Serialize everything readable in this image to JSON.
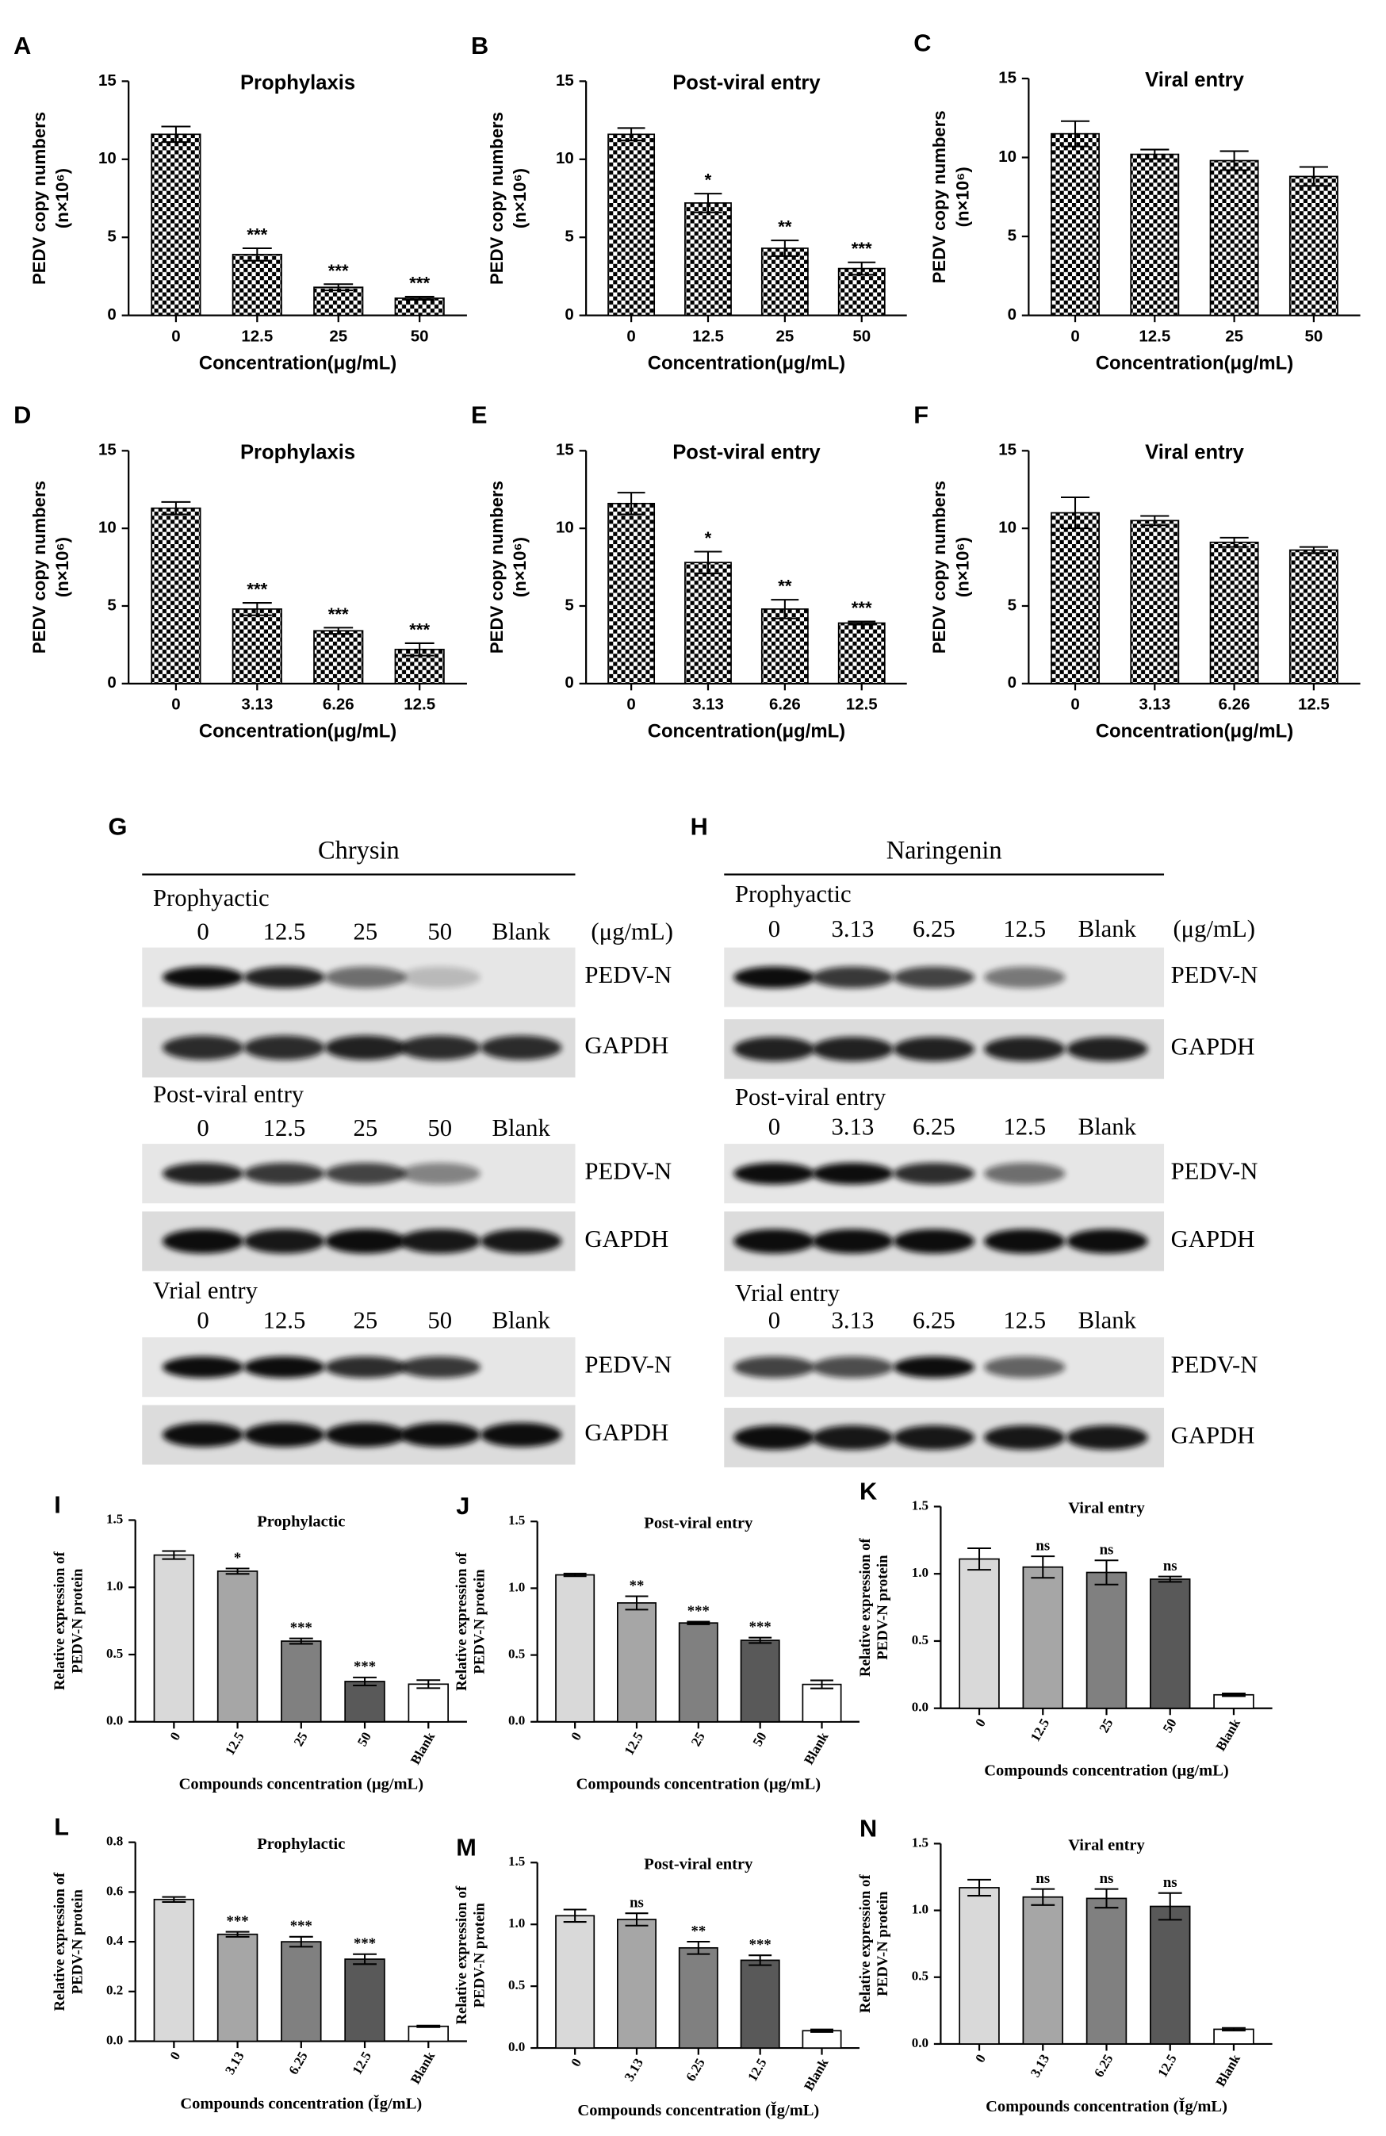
{
  "chart_data": [
    {
      "type": "bar",
      "panel": "A",
      "title": "Prophylaxis",
      "ylabel": [
        "PEDV copy numbers",
        "(n×10⁶)"
      ],
      "xlabel": "Concentration(μg/mL)",
      "categories": [
        "0",
        "12.5",
        "25",
        "50"
      ],
      "values": [
        11.6,
        3.9,
        1.8,
        1.1
      ],
      "errors": [
        0.5,
        0.4,
        0.2,
        0.1
      ],
      "annotations": [
        null,
        "***",
        "***",
        "***"
      ],
      "ylim": [
        0,
        15
      ],
      "yticks": [
        0,
        5,
        10,
        15
      ],
      "pattern": "checker",
      "color": "#000000"
    },
    {
      "type": "bar",
      "panel": "B",
      "title": "Post-viral entry",
      "ylabel": [
        "PEDV copy numbers",
        "(n×10⁶)"
      ],
      "xlabel": "Concentration(μg/mL)",
      "categories": [
        "0",
        "12.5",
        "25",
        "50"
      ],
      "values": [
        11.6,
        7.2,
        4.3,
        3.0
      ],
      "errors": [
        0.4,
        0.6,
        0.5,
        0.4
      ],
      "annotations": [
        null,
        "*",
        "**",
        "***"
      ],
      "ylim": [
        0,
        15
      ],
      "yticks": [
        0,
        5,
        10,
        15
      ],
      "pattern": "checker",
      "color": "#000000"
    },
    {
      "type": "bar",
      "panel": "C",
      "title": "Viral entry",
      "ylabel": [
        "PEDV copy numbers",
        "(n×10⁶)"
      ],
      "xlabel": "Concentration(μg/mL)",
      "categories": [
        "0",
        "12.5",
        "25",
        "50"
      ],
      "values": [
        11.5,
        10.2,
        9.8,
        8.8
      ],
      "errors": [
        0.8,
        0.3,
        0.6,
        0.6
      ],
      "annotations": [
        null,
        null,
        null,
        null
      ],
      "ylim": [
        0,
        15
      ],
      "yticks": [
        0,
        5,
        10,
        15
      ],
      "pattern": "checker",
      "color": "#000000"
    },
    {
      "type": "bar",
      "panel": "D",
      "title": "Prophylaxis",
      "ylabel": [
        "PEDV copy numbers",
        "(n×10⁶)"
      ],
      "xlabel": "Concentration(μg/mL)",
      "categories": [
        "0",
        "3.13",
        "6.26",
        "12.5"
      ],
      "values": [
        11.3,
        4.8,
        3.4,
        2.2
      ],
      "errors": [
        0.4,
        0.4,
        0.2,
        0.4
      ],
      "annotations": [
        null,
        "***",
        "***",
        "***"
      ],
      "ylim": [
        0,
        15
      ],
      "yticks": [
        0,
        5,
        10,
        15
      ],
      "pattern": "checker",
      "color": "#000000"
    },
    {
      "type": "bar",
      "panel": "E",
      "title": "Post-viral entry",
      "ylabel": [
        "PEDV copy numbers",
        "(n×10⁶)"
      ],
      "xlabel": "Concentration(μg/mL)",
      "categories": [
        "0",
        "3.13",
        "6.26",
        "12.5"
      ],
      "values": [
        11.6,
        7.8,
        4.8,
        3.9
      ],
      "errors": [
        0.7,
        0.7,
        0.6,
        0.1
      ],
      "annotations": [
        null,
        "*",
        "**",
        "***"
      ],
      "ylim": [
        0,
        15
      ],
      "yticks": [
        0,
        5,
        10,
        15
      ],
      "pattern": "checker",
      "color": "#000000"
    },
    {
      "type": "bar",
      "panel": "F",
      "title": "Viral entry",
      "ylabel": [
        "PEDV copy numbers",
        "(n×10⁶)"
      ],
      "xlabel": "Concentration(μg/mL)",
      "categories": [
        "0",
        "3.13",
        "6.26",
        "12.5"
      ],
      "values": [
        11.0,
        10.5,
        9.1,
        8.6
      ],
      "errors": [
        1.0,
        0.3,
        0.3,
        0.2
      ],
      "annotations": [
        null,
        null,
        null,
        null
      ],
      "ylim": [
        0,
        15
      ],
      "yticks": [
        0,
        5,
        10,
        15
      ],
      "pattern": "checker",
      "color": "#000000"
    },
    {
      "type": "bar",
      "panel": "I",
      "title": "Prophylactic",
      "ylabel": [
        "Relative expression of",
        "PEDV-N protein"
      ],
      "xlabel": "Compounds concentration (μg/mL)",
      "categories": [
        "0",
        "12.5",
        "25",
        "50",
        "Blank"
      ],
      "values": [
        1.24,
        1.12,
        0.6,
        0.3,
        0.28
      ],
      "errors": [
        0.03,
        0.02,
        0.02,
        0.03,
        0.03
      ],
      "annotations": [
        null,
        "*",
        "***",
        "***",
        null
      ],
      "ylim": [
        0,
        1.5
      ],
      "yticks": [
        {
          "value": 0,
          "label": "0.0"
        },
        0.5,
        {
          "value": 1,
          "label": "1.0"
        },
        1.5
      ],
      "colors": [
        "#d9d9d9",
        "#a6a6a6",
        "#808080",
        "#595959",
        "#ffffff"
      ]
    },
    {
      "type": "bar",
      "panel": "J",
      "title": "Post-viral entry",
      "ylabel": [
        "Relative expression of",
        "PEDV-N protein"
      ],
      "xlabel": "Compounds concentration (μg/mL)",
      "categories": [
        "0",
        "12.5",
        "25",
        "50",
        "Blank"
      ],
      "values": [
        1.1,
        0.89,
        0.74,
        0.61,
        0.28
      ],
      "errors": [
        0.01,
        0.05,
        0.01,
        0.02,
        0.03
      ],
      "annotations": [
        null,
        "**",
        "***",
        "***",
        null
      ],
      "ylim": [
        0,
        1.5
      ],
      "yticks": [
        {
          "value": 0,
          "label": "0.0"
        },
        0.5,
        {
          "value": 1,
          "label": "1.0"
        },
        1.5
      ],
      "colors": [
        "#d9d9d9",
        "#a6a6a6",
        "#808080",
        "#595959",
        "#ffffff"
      ]
    },
    {
      "type": "bar",
      "panel": "K",
      "title": "Viral entry",
      "ylabel": [
        "Relative expression of",
        "PEDV-N protein"
      ],
      "xlabel": "Compounds concentration (μg/mL)",
      "categories": [
        "0",
        "12.5",
        "25",
        "50",
        "Blank"
      ],
      "values": [
        1.11,
        1.05,
        1.01,
        0.96,
        0.1
      ],
      "errors": [
        0.08,
        0.08,
        0.09,
        0.02,
        0.01
      ],
      "annotations": [
        null,
        "ns",
        "ns",
        "ns",
        null
      ],
      "ylim": [
        0,
        1.5
      ],
      "yticks": [
        {
          "value": 0,
          "label": "0.0"
        },
        0.5,
        {
          "value": 1,
          "label": "1.0"
        },
        1.5
      ],
      "colors": [
        "#d9d9d9",
        "#a6a6a6",
        "#808080",
        "#595959",
        "#ffffff"
      ]
    },
    {
      "type": "bar",
      "panel": "L",
      "title": "Prophylactic",
      "ylabel": [
        "Relative expression of",
        "PEDV-N protein"
      ],
      "xlabel": "Compounds concentration (Ǐg/mL)",
      "categories": [
        "0",
        "3.13",
        "6.25",
        "12.5",
        "Blank"
      ],
      "values": [
        0.57,
        0.43,
        0.4,
        0.33,
        0.06
      ],
      "errors": [
        0.01,
        0.01,
        0.02,
        0.02,
        0.003
      ],
      "annotations": [
        null,
        "***",
        "***",
        "***",
        null
      ],
      "ylim": [
        0,
        0.8
      ],
      "yticks": [
        {
          "value": 0,
          "label": "0.0"
        },
        0.2,
        0.4,
        0.6,
        0.8
      ],
      "colors": [
        "#d9d9d9",
        "#a6a6a6",
        "#808080",
        "#595959",
        "#ffffff"
      ]
    },
    {
      "type": "bar",
      "panel": "M",
      "title": "Post-viral entry",
      "ylabel": [
        "Relative expression of",
        "PEDV-N protein"
      ],
      "xlabel": "Compounds concentration (Ǐg/mL)",
      "categories": [
        "0",
        "3.13",
        "6.25",
        "12.5",
        "Blank"
      ],
      "values": [
        1.07,
        1.04,
        0.81,
        0.71,
        0.14
      ],
      "errors": [
        0.05,
        0.05,
        0.05,
        0.04,
        0.01
      ],
      "annotations": [
        null,
        "ns",
        "**",
        "***",
        null
      ],
      "ylim": [
        0,
        1.5
      ],
      "yticks": [
        {
          "value": 0,
          "label": "0.0"
        },
        0.5,
        {
          "value": 1,
          "label": "1.0"
        },
        1.5
      ],
      "colors": [
        "#d9d9d9",
        "#a6a6a6",
        "#808080",
        "#595959",
        "#ffffff"
      ]
    },
    {
      "type": "bar",
      "panel": "N",
      "title": "Viral entry",
      "ylabel": [
        "Relative expression of",
        "PEDV-N protein"
      ],
      "xlabel": "Compounds concentration (Ǐg/mL)",
      "categories": [
        "0",
        "3.13",
        "6.25",
        "12.5",
        "Blank"
      ],
      "values": [
        1.17,
        1.1,
        1.09,
        1.03,
        0.11
      ],
      "errors": [
        0.06,
        0.06,
        0.07,
        0.1,
        0.01
      ],
      "annotations": [
        null,
        "ns",
        "ns",
        "ns",
        null
      ],
      "ylim": [
        0,
        1.5
      ],
      "yticks": [
        {
          "value": 0,
          "label": "0.0"
        },
        0.5,
        {
          "value": 1,
          "label": "1.0"
        },
        1.5
      ],
      "colors": [
        "#d9d9d9",
        "#a6a6a6",
        "#808080",
        "#595959",
        "#ffffff"
      ]
    }
  ],
  "blots": [
    {
      "panel": "G",
      "compound": "Chrysin",
      "unit": "(μg/mL)",
      "sections": [
        {
          "title": "Prophyactic",
          "lanes": [
            "0",
            "12.5",
            "25",
            "50",
            "Blank"
          ],
          "rows": [
            "PEDV-N",
            "GAPDH"
          ]
        },
        {
          "title": "Post-viral entry",
          "lanes": [
            "0",
            "12.5",
            "25",
            "50",
            "Blank"
          ],
          "rows": [
            "PEDV-N",
            "GAPDH"
          ]
        },
        {
          "title": "Vrial entry",
          "lanes": [
            "0",
            "12.5",
            "25",
            "50",
            "Blank"
          ],
          "rows": [
            "PEDV-N",
            "GAPDH"
          ]
        }
      ]
    },
    {
      "panel": "H",
      "compound": "Naringenin",
      "unit": "(μg/mL)",
      "sections": [
        {
          "title": "Prophyactic",
          "lanes": [
            "0",
            "3.13",
            "6.25",
            "12.5",
            "Blank"
          ],
          "rows": [
            "PEDV-N",
            "GAPDH"
          ]
        },
        {
          "title": "Post-viral entry",
          "lanes": [
            "0",
            "3.13",
            "6.25",
            "12.5",
            "Blank"
          ],
          "rows": [
            "PEDV-N",
            "GAPDH"
          ]
        },
        {
          "title": "Vrial entry",
          "lanes": [
            "0",
            "3.13",
            "6.25",
            "12.5",
            "Blank"
          ],
          "rows": [
            "PEDV-N",
            "GAPDH"
          ]
        }
      ]
    }
  ]
}
